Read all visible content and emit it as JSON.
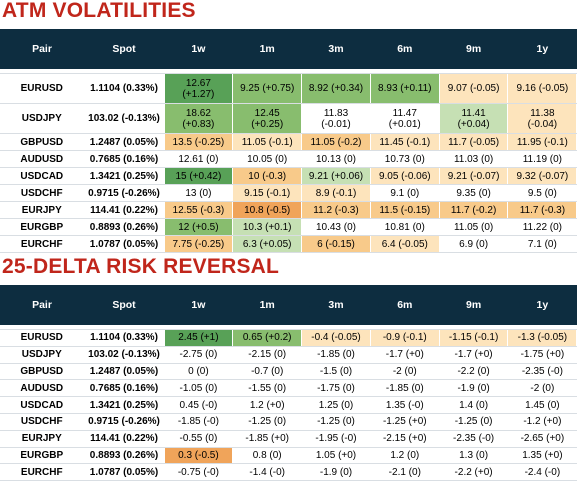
{
  "atm": {
    "title": "ATM VOLATILITIES",
    "headers": [
      "Pair",
      "Spot",
      "1w",
      "1m",
      "3m",
      "6m",
      "9m",
      "1y"
    ],
    "rows": [
      {
        "pair": "EURUSD",
        "spot": "1.1104 (0.33%)",
        "cells": [
          {
            "text": "12.67\n(+1.27)",
            "tone": "pos-3"
          },
          {
            "text": "9.25 (+0.75)",
            "tone": "pos-2"
          },
          {
            "text": "8.92 (+0.34)",
            "tone": "pos-2"
          },
          {
            "text": "8.93 (+0.11)",
            "tone": "pos-2"
          },
          {
            "text": "9.07 (-0.05)",
            "tone": "neg-1"
          },
          {
            "text": "9.16 (-0.05)",
            "tone": "neg-1"
          }
        ]
      },
      {
        "pair": "USDJPY",
        "spot": "103.02 (-0.13%)",
        "cells": [
          {
            "text": "18.62\n(+0.83)",
            "tone": "pos-2"
          },
          {
            "text": "12.45\n(+0.25)",
            "tone": "pos-2"
          },
          {
            "text": "11.83\n(-0.01)",
            "tone": ""
          },
          {
            "text": "11.47\n(+0.01)",
            "tone": ""
          },
          {
            "text": "11.41\n(+0.04)",
            "tone": "pos-1"
          },
          {
            "text": "11.38\n(-0.04)",
            "tone": "neg-1"
          }
        ]
      },
      {
        "pair": "GBPUSD",
        "spot": "1.2487 (0.05%)",
        "cells": [
          {
            "text": "13.5 (-0.25)",
            "tone": "neg-2"
          },
          {
            "text": "11.05 (-0.1)",
            "tone": "neg-1"
          },
          {
            "text": "11.05 (-0.2)",
            "tone": "neg-2"
          },
          {
            "text": "11.45 (-0.1)",
            "tone": "neg-1"
          },
          {
            "text": "11.7 (-0.05)",
            "tone": "neg-1"
          },
          {
            "text": "11.95 (-0.1)",
            "tone": "neg-1"
          }
        ]
      },
      {
        "pair": "AUDUSD",
        "spot": "0.7685 (0.16%)",
        "cells": [
          {
            "text": "12.61 (0)",
            "tone": ""
          },
          {
            "text": "10.05 (0)",
            "tone": ""
          },
          {
            "text": "10.13 (0)",
            "tone": ""
          },
          {
            "text": "10.73 (0)",
            "tone": ""
          },
          {
            "text": "11.03 (0)",
            "tone": ""
          },
          {
            "text": "11.19 (0)",
            "tone": ""
          }
        ]
      },
      {
        "pair": "USDCAD",
        "spot": "1.3421 (0.25%)",
        "cells": [
          {
            "text": "15 (+0.42)",
            "tone": "pos-3"
          },
          {
            "text": "10 (-0.3)",
            "tone": "neg-2"
          },
          {
            "text": "9.21 (+0.06)",
            "tone": "pos-1"
          },
          {
            "text": "9.05 (-0.06)",
            "tone": "neg-1"
          },
          {
            "text": "9.21 (-0.07)",
            "tone": "neg-1"
          },
          {
            "text": "9.32 (-0.07)",
            "tone": "neg-1"
          }
        ]
      },
      {
        "pair": "USDCHF",
        "spot": "0.9715 (-0.26%)",
        "cells": [
          {
            "text": "13 (0)",
            "tone": ""
          },
          {
            "text": "9.15 (-0.1)",
            "tone": "neg-1"
          },
          {
            "text": "8.9 (-0.1)",
            "tone": "neg-1"
          },
          {
            "text": "9.1 (0)",
            "tone": ""
          },
          {
            "text": "9.35 (0)",
            "tone": ""
          },
          {
            "text": "9.5 (0)",
            "tone": ""
          }
        ]
      },
      {
        "pair": "EURJPY",
        "spot": "114.41 (0.22%)",
        "cells": [
          {
            "text": "12.55 (-0.3)",
            "tone": "neg-2"
          },
          {
            "text": "10.8 (-0.5)",
            "tone": "neg-3"
          },
          {
            "text": "11.2 (-0.3)",
            "tone": "neg-2"
          },
          {
            "text": "11.5 (-0.15)",
            "tone": "neg-2"
          },
          {
            "text": "11.7 (-0.2)",
            "tone": "neg-2"
          },
          {
            "text": "11.7 (-0.3)",
            "tone": "neg-2"
          }
        ]
      },
      {
        "pair": "EURGBP",
        "spot": "0.8893 (0.26%)",
        "cells": [
          {
            "text": "12 (+0.5)",
            "tone": "pos-2"
          },
          {
            "text": "10.3 (+0.1)",
            "tone": "pos-1"
          },
          {
            "text": "10.43 (0)",
            "tone": ""
          },
          {
            "text": "10.81 (0)",
            "tone": ""
          },
          {
            "text": "11.05 (0)",
            "tone": ""
          },
          {
            "text": "11.22 (0)",
            "tone": ""
          }
        ]
      },
      {
        "pair": "EURCHF",
        "spot": "1.0787 (0.05%)",
        "cells": [
          {
            "text": "7.75 (-0.25)",
            "tone": "neg-2"
          },
          {
            "text": "6.3 (+0.05)",
            "tone": "pos-1"
          },
          {
            "text": "6 (-0.15)",
            "tone": "neg-2"
          },
          {
            "text": "6.4 (-0.05)",
            "tone": "neg-1"
          },
          {
            "text": "6.9 (0)",
            "tone": ""
          },
          {
            "text": "7.1 (0)",
            "tone": ""
          }
        ]
      }
    ]
  },
  "rr": {
    "title": "25-DELTA RISK REVERSAL",
    "headers": [
      "Pair",
      "Spot",
      "1w",
      "1m",
      "3m",
      "6m",
      "9m",
      "1y"
    ],
    "rows": [
      {
        "pair": "EURUSD",
        "spot": "1.1104 (0.33%)",
        "cells": [
          {
            "text": "2.45 (+1)",
            "tone": "pos-3"
          },
          {
            "text": "0.65 (+0.2)",
            "tone": "pos-2"
          },
          {
            "text": "-0.4 (-0.05)",
            "tone": "neg-1"
          },
          {
            "text": "-0.9 (-0.1)",
            "tone": "neg-1"
          },
          {
            "text": "-1.15 (-0.1)",
            "tone": "neg-1"
          },
          {
            "text": "-1.3 (-0.05)",
            "tone": "neg-1"
          }
        ]
      },
      {
        "pair": "USDJPY",
        "spot": "103.02 (-0.13%)",
        "cells": [
          {
            "text": "-2.75 (0)",
            "tone": ""
          },
          {
            "text": "-2.15 (0)",
            "tone": ""
          },
          {
            "text": "-1.85 (0)",
            "tone": ""
          },
          {
            "text": "-1.7 (+0)",
            "tone": ""
          },
          {
            "text": "-1.7 (+0)",
            "tone": ""
          },
          {
            "text": "-1.75 (+0)",
            "tone": ""
          }
        ]
      },
      {
        "pair": "GBPUSD",
        "spot": "1.2487 (0.05%)",
        "cells": [
          {
            "text": "0 (0)",
            "tone": ""
          },
          {
            "text": "-0.7 (0)",
            "tone": ""
          },
          {
            "text": "-1.5 (0)",
            "tone": ""
          },
          {
            "text": "-2 (0)",
            "tone": ""
          },
          {
            "text": "-2.2 (0)",
            "tone": ""
          },
          {
            "text": "-2.35 (-0)",
            "tone": ""
          }
        ]
      },
      {
        "pair": "AUDUSD",
        "spot": "0.7685 (0.16%)",
        "cells": [
          {
            "text": "-1.05 (0)",
            "tone": ""
          },
          {
            "text": "-1.55 (0)",
            "tone": ""
          },
          {
            "text": "-1.75 (0)",
            "tone": ""
          },
          {
            "text": "-1.85 (0)",
            "tone": ""
          },
          {
            "text": "-1.9 (0)",
            "tone": ""
          },
          {
            "text": "-2 (0)",
            "tone": ""
          }
        ]
      },
      {
        "pair": "USDCAD",
        "spot": "1.3421 (0.25%)",
        "cells": [
          {
            "text": "0.45 (-0)",
            "tone": ""
          },
          {
            "text": "1.2 (+0)",
            "tone": ""
          },
          {
            "text": "1.25 (0)",
            "tone": ""
          },
          {
            "text": "1.35 (-0)",
            "tone": ""
          },
          {
            "text": "1.4 (0)",
            "tone": ""
          },
          {
            "text": "1.45 (0)",
            "tone": ""
          }
        ]
      },
      {
        "pair": "USDCHF",
        "spot": "0.9715 (-0.26%)",
        "cells": [
          {
            "text": "-1.85 (-0)",
            "tone": ""
          },
          {
            "text": "-1.25 (0)",
            "tone": ""
          },
          {
            "text": "-1.25 (0)",
            "tone": ""
          },
          {
            "text": "-1.25 (+0)",
            "tone": ""
          },
          {
            "text": "-1.25 (0)",
            "tone": ""
          },
          {
            "text": "-1.2 (+0)",
            "tone": ""
          }
        ]
      },
      {
        "pair": "EURJPY",
        "spot": "114.41 (0.22%)",
        "cells": [
          {
            "text": "-0.55 (0)",
            "tone": ""
          },
          {
            "text": "-1.85 (+0)",
            "tone": ""
          },
          {
            "text": "-1.95 (-0)",
            "tone": ""
          },
          {
            "text": "-2.15 (+0)",
            "tone": ""
          },
          {
            "text": "-2.35 (-0)",
            "tone": ""
          },
          {
            "text": "-2.65 (+0)",
            "tone": ""
          }
        ]
      },
      {
        "pair": "EURGBP",
        "spot": "0.8893 (0.26%)",
        "cells": [
          {
            "text": "0.3 (-0.5)",
            "tone": "neg-3"
          },
          {
            "text": "0.8 (0)",
            "tone": ""
          },
          {
            "text": "1.05 (+0)",
            "tone": ""
          },
          {
            "text": "1.2 (0)",
            "tone": ""
          },
          {
            "text": "1.3 (0)",
            "tone": ""
          },
          {
            "text": "1.35 (+0)",
            "tone": ""
          }
        ]
      },
      {
        "pair": "EURCHF",
        "spot": "1.0787 (0.05%)",
        "cells": [
          {
            "text": "-0.75 (-0)",
            "tone": ""
          },
          {
            "text": "-1.4 (-0)",
            "tone": ""
          },
          {
            "text": "-1.9 (0)",
            "tone": ""
          },
          {
            "text": "-2.1 (0)",
            "tone": ""
          },
          {
            "text": "-2.2 (+0)",
            "tone": ""
          },
          {
            "text": "-2.4 (-0)",
            "tone": ""
          }
        ]
      }
    ]
  },
  "chart_data": [
    {
      "type": "table",
      "title": "ATM VOLATILITIES",
      "columns": [
        "Pair",
        "Spot",
        "1w",
        "1m",
        "3m",
        "6m",
        "9m",
        "1y"
      ],
      "rows": [
        [
          "EURUSD",
          "1.1104 (0.33%)",
          "12.67 (+1.27)",
          "9.25 (+0.75)",
          "8.92 (+0.34)",
          "8.93 (+0.11)",
          "9.07 (-0.05)",
          "9.16 (-0.05)"
        ],
        [
          "USDJPY",
          "103.02 (-0.13%)",
          "18.62 (+0.83)",
          "12.45 (+0.25)",
          "11.83 (-0.01)",
          "11.47 (+0.01)",
          "11.41 (+0.04)",
          "11.38 (-0.04)"
        ],
        [
          "GBPUSD",
          "1.2487 (0.05%)",
          "13.5 (-0.25)",
          "11.05 (-0.1)",
          "11.05 (-0.2)",
          "11.45 (-0.1)",
          "11.7 (-0.05)",
          "11.95 (-0.1)"
        ],
        [
          "AUDUSD",
          "0.7685 (0.16%)",
          "12.61 (0)",
          "10.05 (0)",
          "10.13 (0)",
          "10.73 (0)",
          "11.03 (0)",
          "11.19 (0)"
        ],
        [
          "USDCAD",
          "1.3421 (0.25%)",
          "15 (+0.42)",
          "10 (-0.3)",
          "9.21 (+0.06)",
          "9.05 (-0.06)",
          "9.21 (-0.07)",
          "9.32 (-0.07)"
        ],
        [
          "USDCHF",
          "0.9715 (-0.26%)",
          "13 (0)",
          "9.15 (-0.1)",
          "8.9 (-0.1)",
          "9.1 (0)",
          "9.35 (0)",
          "9.5 (0)"
        ],
        [
          "EURJPY",
          "114.41 (0.22%)",
          "12.55 (-0.3)",
          "10.8 (-0.5)",
          "11.2 (-0.3)",
          "11.5 (-0.15)",
          "11.7 (-0.2)",
          "11.7 (-0.3)"
        ],
        [
          "EURGBP",
          "0.8893 (0.26%)",
          "12 (+0.5)",
          "10.3 (+0.1)",
          "10.43 (0)",
          "10.81 (0)",
          "11.05 (0)",
          "11.22 (0)"
        ],
        [
          "EURCHF",
          "1.0787 (0.05%)",
          "7.75 (-0.25)",
          "6.3 (+0.05)",
          "6 (-0.15)",
          "6.4 (-0.05)",
          "6.9 (0)",
          "7.1 (0)"
        ]
      ]
    },
    {
      "type": "table",
      "title": "25-DELTA RISK REVERSAL",
      "columns": [
        "Pair",
        "Spot",
        "1w",
        "1m",
        "3m",
        "6m",
        "9m",
        "1y"
      ],
      "rows": [
        [
          "EURUSD",
          "1.1104 (0.33%)",
          "2.45 (+1)",
          "0.65 (+0.2)",
          "-0.4 (-0.05)",
          "-0.9 (-0.1)",
          "-1.15 (-0.1)",
          "-1.3 (-0.05)"
        ],
        [
          "USDJPY",
          "103.02 (-0.13%)",
          "-2.75 (0)",
          "-2.15 (0)",
          "-1.85 (0)",
          "-1.7 (+0)",
          "-1.7 (+0)",
          "-1.75 (+0)"
        ],
        [
          "GBPUSD",
          "1.2487 (0.05%)",
          "0 (0)",
          "-0.7 (0)",
          "-1.5 (0)",
          "-2 (0)",
          "-2.2 (0)",
          "-2.35 (-0)"
        ],
        [
          "AUDUSD",
          "0.7685 (0.16%)",
          "-1.05 (0)",
          "-1.55 (0)",
          "-1.75 (0)",
          "-1.85 (0)",
          "-1.9 (0)",
          "-2 (0)"
        ],
        [
          "USDCAD",
          "1.3421 (0.25%)",
          "0.45 (-0)",
          "1.2 (+0)",
          "1.25 (0)",
          "1.35 (-0)",
          "1.4 (0)",
          "1.45 (0)"
        ],
        [
          "USDCHF",
          "0.9715 (-0.26%)",
          "-1.85 (-0)",
          "-1.25 (0)",
          "-1.25 (0)",
          "-1.25 (+0)",
          "-1.25 (0)",
          "-1.2 (+0)"
        ],
        [
          "EURJPY",
          "114.41 (0.22%)",
          "-0.55 (0)",
          "-1.85 (+0)",
          "-1.95 (-0)",
          "-2.15 (+0)",
          "-2.35 (-0)",
          "-2.65 (+0)"
        ],
        [
          "EURGBP",
          "0.8893 (0.26%)",
          "0.3 (-0.5)",
          "0.8 (0)",
          "1.05 (+0)",
          "1.2 (0)",
          "1.3 (0)",
          "1.35 (+0)"
        ],
        [
          "EURCHF",
          "1.0787 (0.05%)",
          "-0.75 (-0)",
          "-1.4 (-0)",
          "-1.9 (0)",
          "-2.1 (0)",
          "-2.2 (+0)",
          "-2.4 (-0)"
        ]
      ]
    }
  ]
}
